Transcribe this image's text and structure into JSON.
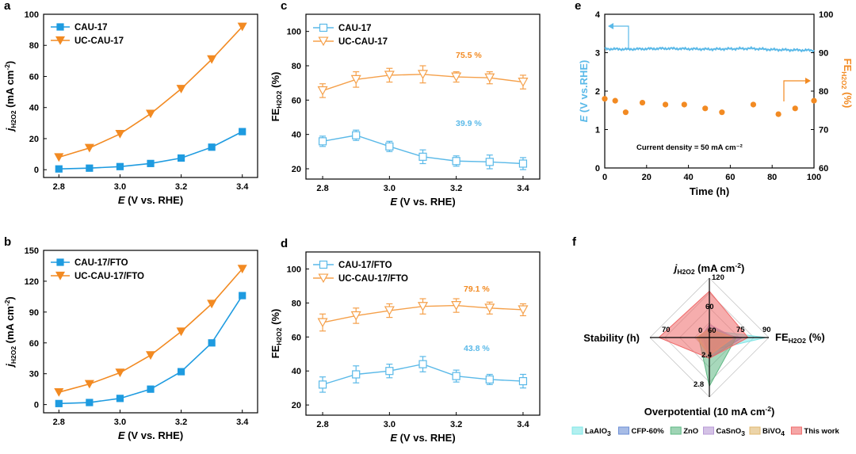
{
  "colors": {
    "blue": "#1e9be0",
    "orange": "#f28a22",
    "light_blue": "#5ab9e8",
    "light_orange": "#f5a04a",
    "red": "#e8504a",
    "radar_lao": "#7fe6e6",
    "radar_cfp": "#6d8fd6",
    "radar_zno": "#5fb884",
    "radar_casno": "#b79ad6",
    "radar_bivo": "#e0b870",
    "radar_this": "#ef6a6a"
  },
  "chart_data": [
    {
      "id": "a",
      "type": "line",
      "panel_label": "a",
      "x": [
        2.8,
        2.9,
        3.0,
        3.1,
        3.2,
        3.3,
        3.4
      ],
      "series": [
        {
          "name": "CAU-17",
          "values": [
            0.5,
            1.0,
            2.0,
            4.0,
            7.5,
            14.5,
            24.5
          ]
        },
        {
          "name": "UC-CAU-17",
          "values": [
            8,
            14,
            23,
            36,
            52,
            71,
            92
          ]
        }
      ],
      "xlabel_pre": "E",
      "xlabel_post": " (V vs. RHE)",
      "ylabel_pre": "j",
      "ylabel_sub": "H2O2",
      "ylabel_post": " (mA cm",
      "ylabel_sup": "-2",
      "ylabel_end": ")",
      "xlim": [
        2.75,
        3.45
      ],
      "ylim": [
        -5,
        100
      ],
      "xticks": [
        "2.8",
        "3.0",
        "3.2",
        "3.4"
      ],
      "yticks": [
        "0",
        "20",
        "40",
        "60",
        "80",
        "100"
      ]
    },
    {
      "id": "b",
      "type": "line",
      "panel_label": "b",
      "x": [
        2.8,
        2.9,
        3.0,
        3.1,
        3.2,
        3.3,
        3.4
      ],
      "series": [
        {
          "name": "CAU-17/FTO",
          "values": [
            1,
            2,
            6,
            15,
            32,
            60,
            106
          ]
        },
        {
          "name": "UC-CAU-17/FTO",
          "values": [
            12,
            20,
            31,
            48,
            71,
            98,
            132
          ]
        }
      ],
      "xlabel_pre": "E",
      "xlabel_post": " (V vs. RHE)",
      "ylabel_pre": "j",
      "ylabel_sub": "H2O2",
      "ylabel_post": " (mA cm",
      "ylabel_sup": "-2",
      "ylabel_end": ")",
      "xlim": [
        2.75,
        3.45
      ],
      "ylim": [
        -8,
        150
      ],
      "xticks": [
        "2.8",
        "3.0",
        "3.2",
        "3.4"
      ],
      "yticks": [
        "0",
        "30",
        "60",
        "90",
        "120",
        "150"
      ]
    },
    {
      "id": "c",
      "type": "scatter",
      "panel_label": "c",
      "x": [
        2.8,
        2.9,
        3.0,
        3.1,
        3.2,
        3.3,
        3.4
      ],
      "series": [
        {
          "name": "CAU-17",
          "values": [
            36,
            39.5,
            33,
            27,
            24.5,
            24,
            23
          ],
          "errors": [
            3,
            3,
            3,
            4,
            3,
            4,
            3.5
          ]
        },
        {
          "name": "UC-CAU-17",
          "values": [
            65.5,
            72,
            74.5,
            75,
            73.5,
            73,
            70.5
          ],
          "errors": [
            4,
            4.5,
            4,
            5,
            3,
            3.5,
            4
          ]
        }
      ],
      "annotations": [
        "75.5 %",
        "39.9 %"
      ],
      "xlabel_pre": "E",
      "xlabel_post": " (V vs. RHE)",
      "ylabel_pre": "FE",
      "ylabel_sub": "H2O2",
      "ylabel_post": " (%)",
      "xlim": [
        2.75,
        3.45
      ],
      "ylim": [
        14,
        110
      ],
      "xticks": [
        "2.8",
        "3.0",
        "3.2",
        "3.4"
      ],
      "yticks": [
        "20",
        "40",
        "60",
        "80",
        "100"
      ]
    },
    {
      "id": "d",
      "type": "scatter",
      "panel_label": "d",
      "x": [
        2.8,
        2.9,
        3.0,
        3.1,
        3.2,
        3.3,
        3.4
      ],
      "series": [
        {
          "name": "CAU-17/FTO",
          "values": [
            32,
            38,
            40,
            44,
            37,
            35,
            34
          ],
          "errors": [
            4.5,
            5,
            4,
            4.5,
            3.5,
            3,
            4
          ]
        },
        {
          "name": "UC-CAU-17/FTO",
          "values": [
            68.5,
            72.5,
            75.5,
            78,
            78.5,
            77,
            76
          ],
          "errors": [
            5,
            4.5,
            4,
            4.5,
            4,
            3.5,
            3.5
          ]
        }
      ],
      "annotations": [
        "79.1 %",
        "43.8 %"
      ],
      "xlabel_pre": "E",
      "xlabel_post": " (V vs. RHE)",
      "ylabel_pre": "FE",
      "ylabel_sub": "H2O2",
      "ylabel_post": " (%)",
      "xlim": [
        2.75,
        3.45
      ],
      "ylim": [
        14,
        110
      ],
      "xticks": [
        "2.8",
        "3.0",
        "3.2",
        "3.4"
      ],
      "yticks": [
        "20",
        "40",
        "60",
        "80",
        "100"
      ]
    },
    {
      "id": "e",
      "type": "line",
      "panel_label": "e",
      "potential": {
        "name": "E (V vs.RHE)",
        "x": [
          0,
          10,
          20,
          30,
          40,
          50,
          60,
          70,
          80,
          90,
          100
        ],
        "values": [
          3.1,
          3.09,
          3.1,
          3.11,
          3.1,
          3.09,
          3.1,
          3.11,
          3.08,
          3.07,
          3.06
        ]
      },
      "fe": {
        "name": "FE H2O2 (%)",
        "x": [
          0,
          5,
          10,
          18,
          29,
          38,
          48,
          56,
          71,
          83,
          91,
          100
        ],
        "values": [
          78.0,
          77.5,
          74.5,
          77.0,
          76.5,
          76.5,
          75.5,
          74.5,
          76.5,
          74.0,
          75.5,
          77.5
        ]
      },
      "annotation": "Current density = 50 mA cm⁻²",
      "xlabel": "Time (h)",
      "ylabel_left_pre": "E",
      "ylabel_left_post": " (V vs.RHE)",
      "ylabel_right_pre": "FE",
      "ylabel_right_sub": "H2O2",
      "ylabel_right_post": " (%)",
      "xlim": [
        0,
        100
      ],
      "ylim_left": [
        0,
        4
      ],
      "ylim_right": [
        60,
        100
      ],
      "xticks": [
        "0",
        "20",
        "40",
        "60",
        "80",
        "100"
      ],
      "yticks_left": [
        "0",
        "1",
        "2",
        "3",
        "4"
      ],
      "yticks_right": [
        "60",
        "70",
        "80",
        "90",
        "100"
      ]
    },
    {
      "id": "f",
      "type": "radar",
      "panel_label": "f",
      "axes": [
        {
          "label_pre": "j",
          "label_sub": "H2O2",
          "label_post": " (mA cm",
          "label_sup": "-2",
          "label_end": ")",
          "ticks": [
            "60",
            "120"
          ]
        },
        {
          "label_pre": "FE",
          "label_sub": "H2O2",
          "label_post": " (%)",
          "ticks": [
            "75",
            "90"
          ]
        },
        {
          "label_pre": "Overpotential (10 mA cm",
          "label_sup": "-2",
          "label_end": ")",
          "ticks": [
            "2.4",
            "2.8"
          ]
        },
        {
          "label_pre": "Stability (h)",
          "ticks": [
            "70"
          ]
        }
      ],
      "center_ticks": [
        "0",
        "60"
      ],
      "series": [
        {
          "name": "LaAlO",
          "sub": "3",
          "values": [
            0.12,
            0.95,
            0.22,
            0.12
          ]
        },
        {
          "name": "CFP-60%",
          "sub": "",
          "values": [
            0.08,
            0.55,
            0.35,
            0.1
          ]
        },
        {
          "name": "ZnO",
          "sub": "",
          "values": [
            0.18,
            0.45,
            0.82,
            0.18
          ]
        },
        {
          "name": "CaSnO",
          "sub": "3",
          "values": [
            0.22,
            0.42,
            0.28,
            0.15
          ]
        },
        {
          "name": "BiVO",
          "sub": "4",
          "values": [
            0.14,
            0.4,
            0.3,
            0.22
          ]
        },
        {
          "name": "This work",
          "sub": "",
          "values": [
            0.78,
            0.65,
            0.35,
            0.85
          ]
        }
      ]
    }
  ]
}
